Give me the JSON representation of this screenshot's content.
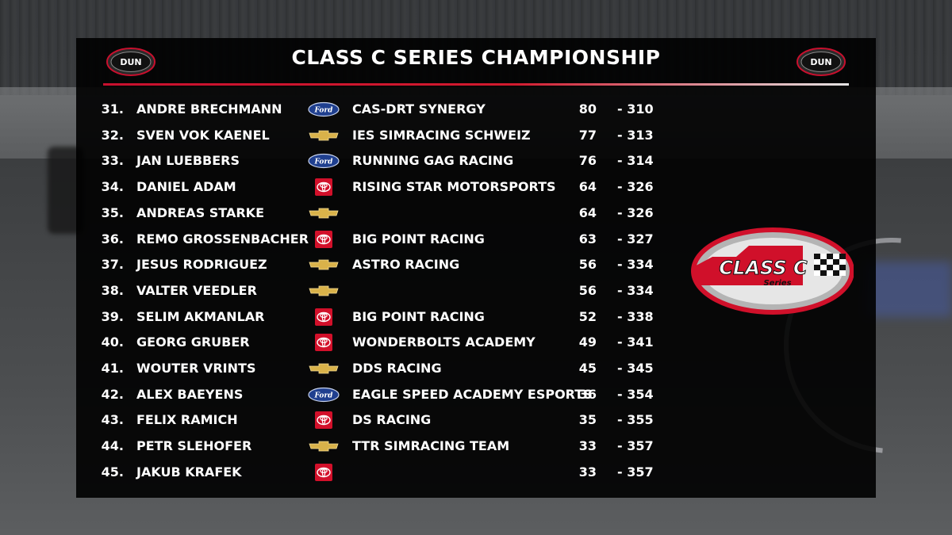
{
  "title": "CLASS C SERIES CHAMPIONSHIP",
  "header_logo": {
    "text": "DUN",
    "icon": "league-logo"
  },
  "class_logo": {
    "main": "CLASS C",
    "sub": "Series",
    "icon": "class-c-series-logo"
  },
  "colors": {
    "accent": "#c8102e",
    "panel": "#000000",
    "text": "#ffffff",
    "ford_blue": "#1f3f8f",
    "chevy_gold": "#d9b24a",
    "toyota_red": "#d2102a"
  },
  "standings": [
    {
      "pos": "31.",
      "driver": "ANDRE BRECHMANN",
      "make": "ford",
      "team": "CAS-DRT SYNERGY",
      "points": "80",
      "gap": "- 310"
    },
    {
      "pos": "32.",
      "driver": "SVEN VOK KAENEL",
      "make": "chevrolet",
      "team": "IES SIMRACING SCHWEIZ",
      "points": "77",
      "gap": "- 313"
    },
    {
      "pos": "33.",
      "driver": "JAN LUEBBERS",
      "make": "ford",
      "team": "RUNNING GAG RACING",
      "points": "76",
      "gap": "- 314"
    },
    {
      "pos": "34.",
      "driver": "DANIEL ADAM",
      "make": "toyota",
      "team": "RISING STAR MOTORSPORTS",
      "points": "64",
      "gap": "- 326"
    },
    {
      "pos": "35.",
      "driver": "ANDREAS STARKE",
      "make": "chevrolet",
      "team": "",
      "points": "64",
      "gap": "- 326"
    },
    {
      "pos": "36.",
      "driver": "REMO GROSSENBACHER",
      "make": "toyota",
      "team": "BIG POINT RACING",
      "points": "63",
      "gap": "- 327"
    },
    {
      "pos": "37.",
      "driver": "JESUS RODRIGUEZ",
      "make": "chevrolet",
      "team": "ASTRO RACING",
      "points": "56",
      "gap": "- 334"
    },
    {
      "pos": "38.",
      "driver": "VALTER VEEDLER",
      "make": "chevrolet",
      "team": "",
      "points": "56",
      "gap": "- 334"
    },
    {
      "pos": "39.",
      "driver": "SELIM AKMANLAR",
      "make": "toyota",
      "team": "BIG POINT RACING",
      "points": "52",
      "gap": "- 338"
    },
    {
      "pos": "40.",
      "driver": "GEORG GRUBER",
      "make": "toyota",
      "team": "WONDERBOLTS ACADEMY",
      "points": "49",
      "gap": "- 341"
    },
    {
      "pos": "41.",
      "driver": "WOUTER VRINTS",
      "make": "chevrolet",
      "team": "DDS RACING",
      "points": "45",
      "gap": "- 345"
    },
    {
      "pos": "42.",
      "driver": "ALEX BAEYENS",
      "make": "ford",
      "team": "EAGLE SPEED ACADEMY ESPORTS",
      "points": "36",
      "gap": "- 354"
    },
    {
      "pos": "43.",
      "driver": "FELIX RAMICH",
      "make": "toyota",
      "team": "DS RACING",
      "points": "35",
      "gap": "- 355"
    },
    {
      "pos": "44.",
      "driver": "PETR SLEHOFER",
      "make": "chevrolet",
      "team": "TTR SIMRACING TEAM",
      "points": "33",
      "gap": "- 357"
    },
    {
      "pos": "45.",
      "driver": "JAKUB KRAFEK",
      "make": "toyota",
      "team": "",
      "points": "33",
      "gap": "- 357"
    }
  ]
}
